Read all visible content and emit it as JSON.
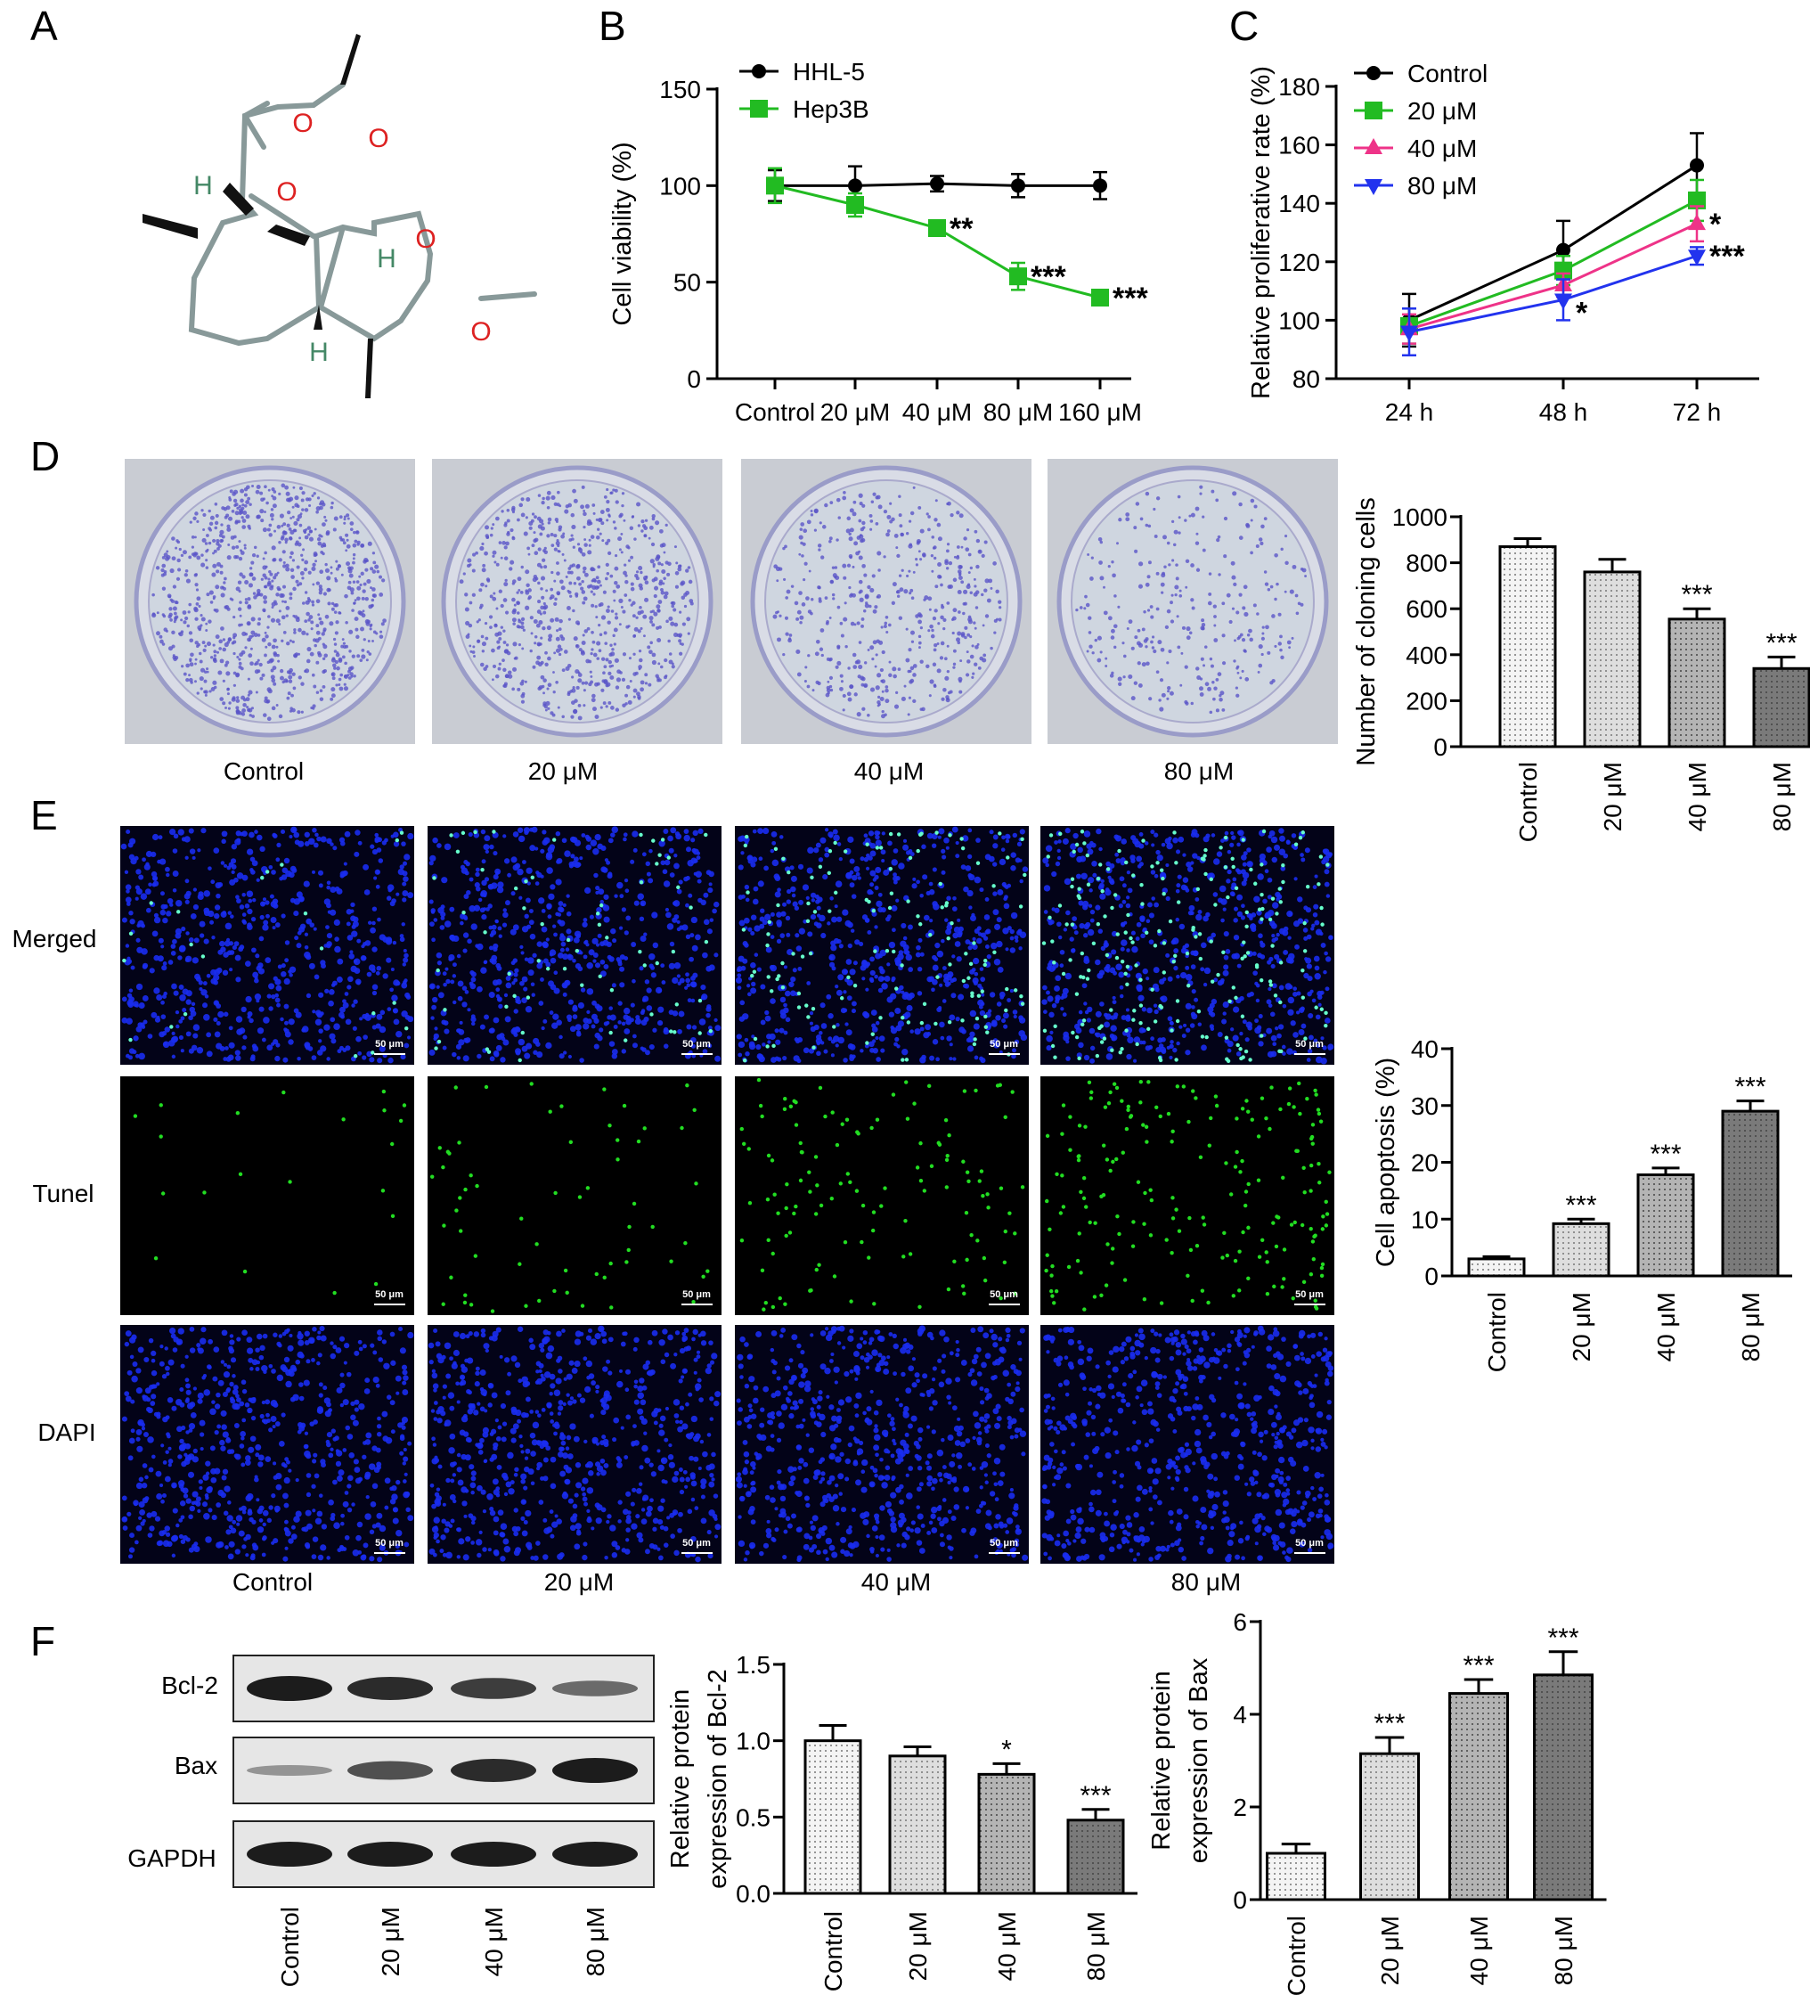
{
  "panels": {
    "A": "A",
    "B": "B",
    "C": "C",
    "D": "D",
    "E": "E",
    "F": "F"
  },
  "colors": {
    "hhl5": "#000000",
    "hep3b": "#22bb22",
    "control": "#000000",
    "c20": "#22bb22",
    "c40": "#ee3388",
    "c80": "#2233ee",
    "oxygen": "#dd2222",
    "hydrogen": "#448866",
    "bond": "#889999"
  },
  "molecule": {
    "atoms": {
      "o1": "O",
      "o2": "O",
      "o3": "O",
      "o4": "O",
      "o5": "O",
      "h1": "H",
      "h2": "H",
      "h3": "H"
    }
  },
  "panel_d": {
    "dish_labels": [
      "Control",
      "20 μM",
      "40 μM",
      "80 μM"
    ],
    "colony_density": [
      1.0,
      0.82,
      0.55,
      0.32
    ]
  },
  "panel_e": {
    "row_labels": [
      "Merged",
      "Tunel",
      "DAPI"
    ],
    "col_labels": [
      "Control",
      "20 μM",
      "40 μM",
      "80 μM"
    ],
    "scale_bar": "50 μm",
    "tunel_density": [
      0.03,
      0.09,
      0.18,
      0.29
    ]
  },
  "panel_f": {
    "blot_labels": [
      "Bcl-2",
      "Bax",
      "GAPDH"
    ],
    "lane_labels": [
      "Control",
      "20 μM",
      "40 μM",
      "80 μM"
    ],
    "bcl2_intensity": [
      1.0,
      0.9,
      0.78,
      0.48
    ],
    "bax_intensity": [
      0.2,
      0.65,
      0.9,
      1.0
    ],
    "gapdh_intensity": [
      1.0,
      1.0,
      1.0,
      1.0
    ]
  },
  "chart_data": [
    {
      "id": "B",
      "type": "line",
      "ylabel": "Cell viability (%)",
      "xlabel": "",
      "categories": [
        "Control",
        "20 μM",
        "40 μM",
        "80 μM",
        "160 μM"
      ],
      "ylim": [
        0,
        150
      ],
      "yticks": [
        "0",
        "50",
        "100",
        "150"
      ],
      "legend_position": "top-left",
      "series": [
        {
          "name": "HHL-5",
          "color": "#000000",
          "marker": "circle",
          "values": [
            100,
            100,
            101,
            100,
            100
          ],
          "errors": [
            8,
            10,
            4,
            6,
            7
          ],
          "stars": [
            "",
            "",
            "",
            "",
            ""
          ]
        },
        {
          "name": "Hep3B",
          "color": "#22bb22",
          "marker": "square",
          "values": [
            100,
            90,
            78,
            53,
            42
          ],
          "errors": [
            9,
            6,
            4,
            7,
            4
          ],
          "stars": [
            "",
            "",
            "**",
            "***",
            "***"
          ]
        }
      ]
    },
    {
      "id": "C",
      "type": "line",
      "ylabel": "Relative proliferative rate (%)",
      "xlabel": "",
      "categories": [
        "24 h",
        "48 h",
        "72 h"
      ],
      "ylim": [
        80,
        180
      ],
      "yticks": [
        "80",
        "100",
        "120",
        "140",
        "160",
        "180"
      ],
      "legend_position": "top-left",
      "series": [
        {
          "name": "Control",
          "color": "#000000",
          "marker": "circle",
          "values": [
            100,
            124,
            153
          ],
          "errors": [
            9,
            10,
            11
          ],
          "stars": [
            "",
            "",
            ""
          ]
        },
        {
          "name": "20 μM",
          "color": "#22bb22",
          "marker": "square",
          "values": [
            98,
            117,
            141
          ],
          "errors": [
            6,
            5,
            7
          ],
          "stars": [
            "",
            "",
            ""
          ]
        },
        {
          "name": "40 μM",
          "color": "#ee3388",
          "marker": "triangle-up",
          "values": [
            97,
            112,
            133
          ],
          "errors": [
            5,
            4,
            6
          ],
          "stars": [
            "",
            "",
            "*"
          ]
        },
        {
          "name": "80 μM",
          "color": "#2233ee",
          "marker": "triangle-down",
          "values": [
            96,
            107,
            122
          ],
          "errors": [
            8,
            7,
            3
          ],
          "stars": [
            "",
            "*",
            "***"
          ]
        }
      ]
    },
    {
      "id": "D",
      "type": "bar",
      "ylabel": "Number of cloning cells",
      "categories": [
        "Control",
        "20 μM",
        "40 μM",
        "80 μM"
      ],
      "values": [
        870,
        760,
        555,
        340
      ],
      "errors": [
        35,
        55,
        45,
        50
      ],
      "stars": [
        "",
        "",
        "***",
        "***"
      ],
      "ylim": [
        0,
        1000
      ],
      "yticks": [
        "0",
        "200",
        "400",
        "600",
        "800",
        "1000"
      ],
      "fills": [
        "#f4f4f4",
        "#dedede",
        "#b4b4b4",
        "#7a7a7a"
      ]
    },
    {
      "id": "E",
      "type": "bar",
      "ylabel": "Cell apoptosis (%)",
      "categories": [
        "Control",
        "20 μM",
        "40 μM",
        "80 μM"
      ],
      "values": [
        3,
        9.2,
        17.8,
        29
      ],
      "errors": [
        0.4,
        0.8,
        1.2,
        1.8
      ],
      "stars": [
        "",
        "***",
        "***",
        "***"
      ],
      "ylim": [
        0,
        40
      ],
      "yticks": [
        "0",
        "10",
        "20",
        "30",
        "40"
      ],
      "fills": [
        "#f4f4f4",
        "#dedede",
        "#b4b4b4",
        "#7a7a7a"
      ]
    },
    {
      "id": "F1",
      "type": "bar",
      "ylabel": [
        "Relative protein",
        "expression of Bcl-2"
      ],
      "categories": [
        "Control",
        "20 μM",
        "40 μM",
        "80 μM"
      ],
      "values": [
        1.0,
        0.9,
        0.78,
        0.48
      ],
      "errors": [
        0.1,
        0.06,
        0.07,
        0.07
      ],
      "stars": [
        "",
        "",
        "*",
        "***"
      ],
      "ylim": [
        0,
        1.5
      ],
      "yticks": [
        "0.0",
        "0.5",
        "1.0",
        "1.5"
      ],
      "fills": [
        "#f4f4f4",
        "#dedede",
        "#b4b4b4",
        "#7a7a7a"
      ]
    },
    {
      "id": "F2",
      "type": "bar",
      "ylabel": [
        "Relative protein",
        "expression of Bax"
      ],
      "categories": [
        "Control",
        "20 μM",
        "40 μM",
        "80 μM"
      ],
      "values": [
        1.0,
        3.15,
        4.45,
        4.85
      ],
      "errors": [
        0.2,
        0.35,
        0.3,
        0.5
      ],
      "stars": [
        "",
        "***",
        "***",
        "***"
      ],
      "ylim": [
        0,
        6
      ],
      "yticks": [
        "0",
        "2",
        "4",
        "6"
      ],
      "fills": [
        "#f4f4f4",
        "#dedede",
        "#b4b4b4",
        "#7a7a7a"
      ]
    }
  ]
}
